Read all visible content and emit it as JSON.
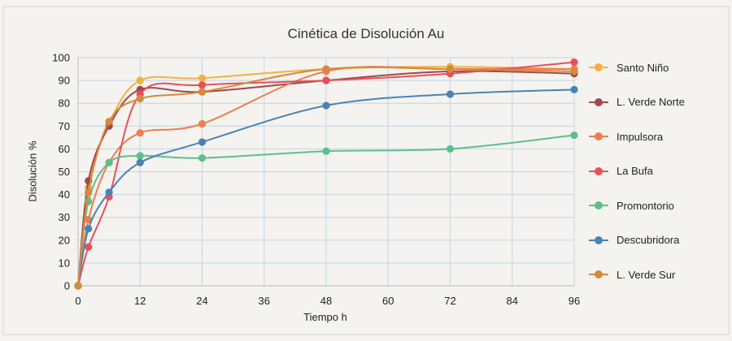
{
  "chart_data": {
    "type": "line",
    "title": "Cinética de Disolución Au",
    "xlabel": "Tiempo h",
    "ylabel": "Disolución %",
    "xlim": [
      0,
      96
    ],
    "ylim": [
      0,
      100
    ],
    "xticks": [
      0,
      12,
      24,
      36,
      48,
      60,
      72,
      84,
      96
    ],
    "yticks": [
      0,
      10,
      20,
      30,
      40,
      50,
      60,
      70,
      80,
      90,
      100
    ],
    "grid": true,
    "legend_position": "right",
    "series": [
      {
        "name": "Santo Niño",
        "color": "#f5b041",
        "points": [
          [
            0,
            0
          ],
          [
            2,
            43
          ],
          [
            6,
            71
          ],
          [
            12,
            90
          ],
          [
            24,
            91
          ],
          [
            48,
            95
          ],
          [
            72,
            96
          ],
          [
            96,
            95
          ]
        ]
      },
      {
        "name": "L. Verde Norte",
        "color": "#a04a4a",
        "points": [
          [
            0,
            0
          ],
          [
            2,
            46
          ],
          [
            6,
            70
          ],
          [
            12,
            86
          ],
          [
            24,
            85
          ],
          [
            48,
            90
          ],
          [
            72,
            94
          ],
          [
            96,
            93
          ]
        ]
      },
      {
        "name": "Impulsora",
        "color": "#ee7d52",
        "points": [
          [
            0,
            0
          ],
          [
            2,
            29
          ],
          [
            6,
            54
          ],
          [
            12,
            67
          ],
          [
            24,
            71
          ],
          [
            48,
            94
          ],
          [
            72,
            95
          ],
          [
            96,
            95
          ]
        ]
      },
      {
        "name": "La Bufa",
        "color": "#e94f5a",
        "points": [
          [
            0,
            0
          ],
          [
            2,
            17
          ],
          [
            6,
            39
          ],
          [
            12,
            84
          ],
          [
            24,
            88
          ],
          [
            48,
            90
          ],
          [
            72,
            93
          ],
          [
            96,
            98
          ]
        ]
      },
      {
        "name": "Promontorio",
        "color": "#5dbf8c",
        "points": [
          [
            0,
            0
          ],
          [
            2,
            37
          ],
          [
            6,
            54
          ],
          [
            12,
            57
          ],
          [
            24,
            56
          ],
          [
            48,
            59
          ],
          [
            72,
            60
          ],
          [
            96,
            66
          ]
        ]
      },
      {
        "name": "Descubridora",
        "color": "#4a82b5",
        "points": [
          [
            0,
            0
          ],
          [
            2,
            25
          ],
          [
            6,
            41
          ],
          [
            12,
            54
          ],
          [
            24,
            63
          ],
          [
            48,
            79
          ],
          [
            72,
            84
          ],
          [
            96,
            86
          ]
        ]
      },
      {
        "name": "L. Verde Sur",
        "color": "#d48a3c",
        "points": [
          [
            0,
            0
          ],
          [
            2,
            41
          ],
          [
            6,
            72
          ],
          [
            12,
            82
          ],
          [
            24,
            85
          ],
          [
            48,
            95
          ],
          [
            72,
            95
          ],
          [
            96,
            94
          ]
        ]
      }
    ]
  }
}
